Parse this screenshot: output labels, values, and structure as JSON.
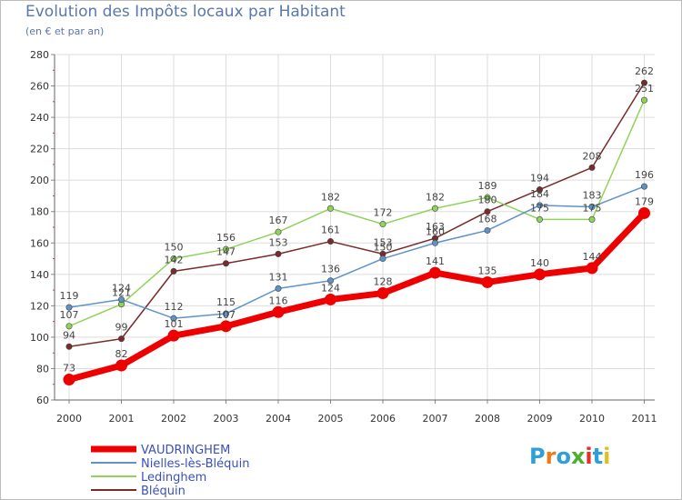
{
  "header": {
    "title": "Evolution des Impôts locaux par Habitant",
    "subtitle": "(en € et par an)"
  },
  "logo": {
    "text": "Proxiti",
    "letters": [
      "P",
      "r",
      "o",
      "x",
      "i",
      "t",
      "i"
    ],
    "colors": [
      "#2f9fd8",
      "#f07a1a",
      "#2f9fd8",
      "#4caf2f",
      "#e2302a",
      "#2f9fd8",
      "#e0c020"
    ]
  },
  "chart_data": {
    "type": "line",
    "title": "Evolution des Impôts locaux par Habitant",
    "subtitle": "(en € et par an)",
    "categories": [
      "2000",
      "2001",
      "2002",
      "2003",
      "2004",
      "2005",
      "2006",
      "2007",
      "2008",
      "2009",
      "2010",
      "2011"
    ],
    "ylim": [
      60,
      280
    ],
    "yticks": [
      60,
      80,
      100,
      120,
      140,
      160,
      180,
      200,
      220,
      240,
      260,
      280
    ],
    "grid": true,
    "legend_position": "bottom-left",
    "series": [
      {
        "name": "VAUDRINGHEM",
        "color": "#ee0000",
        "values": [
          73,
          82,
          101,
          107,
          116,
          124,
          128,
          141,
          135,
          140,
          144,
          179
        ]
      },
      {
        "name": "Nielles-lès-Bléquin",
        "color": "#5f93c7",
        "values": [
          119,
          124,
          112,
          115,
          131,
          136,
          150,
          160,
          168,
          184,
          183,
          196
        ]
      },
      {
        "name": "Ledinghem",
        "color": "#8fd35a",
        "values": [
          107,
          121,
          150,
          156,
          167,
          182,
          172,
          182,
          189,
          175,
          175,
          251
        ]
      },
      {
        "name": "Bléquin",
        "color": "#7a2a2a",
        "values": [
          94,
          99,
          142,
          147,
          153,
          161,
          153,
          163,
          180,
          194,
          208,
          262
        ]
      }
    ]
  }
}
